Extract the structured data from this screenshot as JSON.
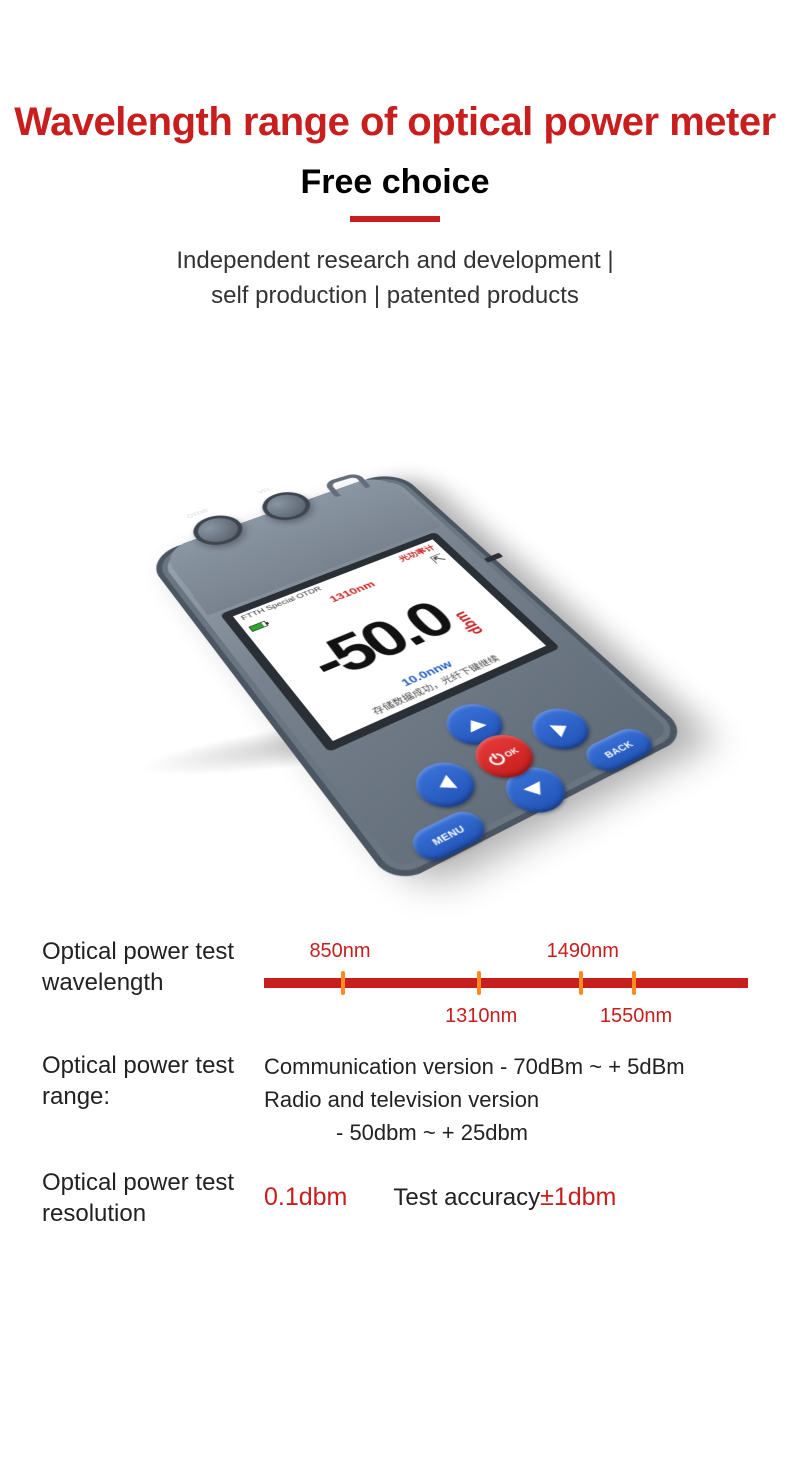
{
  "colors": {
    "accent": "#c81e1e",
    "text": "#222222",
    "device_body_light": "#8b96a3",
    "device_body_dark": "#5f6a77",
    "btn_blue": "#2a5cc4",
    "btn_red": "#d22"
  },
  "header": {
    "title": "Wavelength range of optical power meter",
    "subtitle": "Free choice",
    "tagline_l1": "Independent research and development |",
    "tagline_l2": "self production | patented products"
  },
  "device": {
    "screen": {
      "brand": "光功率计",
      "model": "FTTH Special OTDR",
      "wavelength": "1310nm",
      "main_value": "-50.0",
      "unit": "dbm",
      "sub_value": "10.0nnw",
      "footer": "存储数据成功，光纤下键继续"
    },
    "buttons": {
      "menu": "MENU",
      "back": "BACK",
      "ok": "OK"
    },
    "port_labels": {
      "p1": "OTDR",
      "p2": "VFL"
    }
  },
  "specs": {
    "wavelength": {
      "label": "Optical power test wavelength",
      "line_color": "#c81e1e",
      "tick_color": "#ff8a1e",
      "points": [
        {
          "label": "850nm",
          "pos_pct": 16,
          "label_side": "top"
        },
        {
          "label": "1310nm",
          "pos_pct": 44,
          "label_side": "bottom"
        },
        {
          "label": "1490nm",
          "pos_pct": 65,
          "label_side": "top"
        },
        {
          "label": "1550nm",
          "pos_pct": 76,
          "label_side": "bottom"
        }
      ]
    },
    "range": {
      "label": "Optical power test range:",
      "line1": "Communication version - 70dBm ~ + 5dBm",
      "line2a": "Radio and television version",
      "line2b": "- 50dbm ~ + 25dbm"
    },
    "resolution": {
      "label": "Optical power test resolution",
      "value": "0.1dbm",
      "accuracy_label": "Test accuracy",
      "accuracy_value": "±1dbm"
    }
  }
}
